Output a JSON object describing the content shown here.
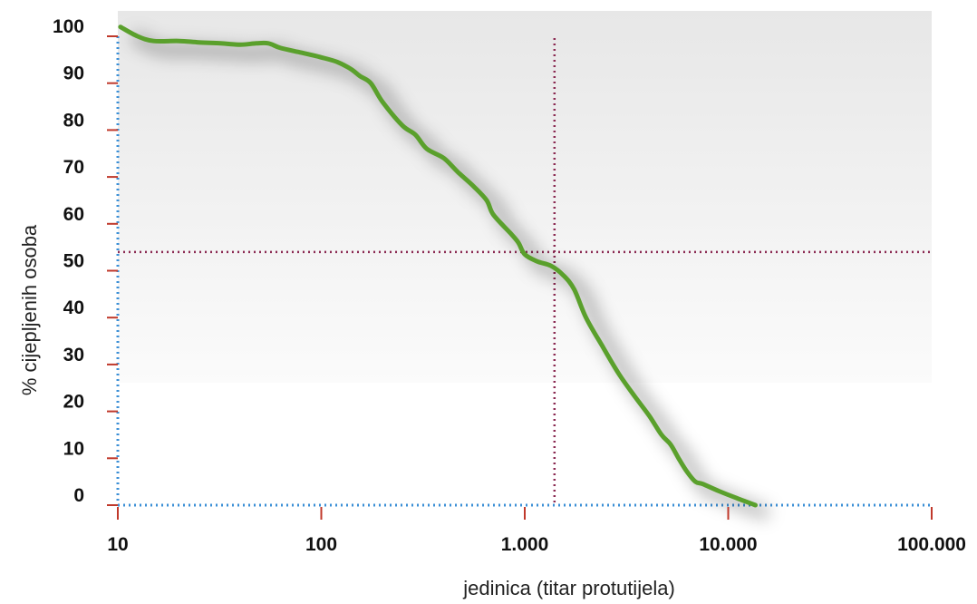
{
  "chart_data": {
    "type": "line",
    "title": "",
    "xlabel": "jedinica (titar protutijela)",
    "ylabel": "% cijepljenih osoba",
    "x_scale": "log",
    "xlim": [
      10,
      100000
    ],
    "ylim": [
      0,
      100
    ],
    "x_ticks": [
      {
        "value": 10,
        "label": "10"
      },
      {
        "value": 100,
        "label": "100"
      },
      {
        "value": 1000,
        "label": "1.000"
      },
      {
        "value": 10000,
        "label": "10.000"
      },
      {
        "value": 100000,
        "label": "100.000"
      }
    ],
    "y_ticks": [
      {
        "value": 0,
        "label": "0"
      },
      {
        "value": 10,
        "label": "10"
      },
      {
        "value": 20,
        "label": "20"
      },
      {
        "value": 30,
        "label": "30"
      },
      {
        "value": 40,
        "label": "40"
      },
      {
        "value": 50,
        "label": "50"
      },
      {
        "value": 60,
        "label": "60"
      },
      {
        "value": 70,
        "label": "70"
      },
      {
        "value": 80,
        "label": "80"
      },
      {
        "value": 90,
        "label": "90"
      },
      {
        "value": 100,
        "label": "100"
      }
    ],
    "series": [
      {
        "color": "#5aa02c",
        "x": [
          10.3,
          12.5,
          15,
          20,
          25,
          32,
          40,
          48,
          55,
          63,
          80,
          100,
          120,
          140,
          155,
          175,
          200,
          250,
          290,
          330,
          400,
          470,
          560,
          650,
          700,
          850,
          930,
          1000,
          1150,
          1350,
          1550,
          1750,
          2000,
          2400,
          2900,
          3500,
          4100,
          4700,
          5200,
          5700,
          6300,
          6900,
          7500,
          9000,
          11000,
          13600
        ],
        "y": [
          102,
          100,
          99,
          99,
          98.7,
          98.5,
          98.2,
          98.5,
          98.5,
          97.5,
          96.5,
          95.5,
          94.5,
          93,
          91.5,
          90,
          86,
          81,
          79,
          76,
          74,
          71,
          68,
          65,
          62,
          58,
          56,
          53.5,
          52,
          51,
          49,
          46,
          40,
          34,
          28,
          23,
          19,
          15,
          13,
          10,
          7,
          5,
          4.5,
          3,
          1.5,
          0
        ]
      }
    ],
    "reference_lines": [
      {
        "axis": "x",
        "value": 1400,
        "color": "#8b2a52"
      },
      {
        "axis": "y",
        "value": 54,
        "color": "#8b2a52"
      }
    ],
    "axis_line_color": "#3b8fd6",
    "tick_color": "#c0392b",
    "grid": false
  }
}
